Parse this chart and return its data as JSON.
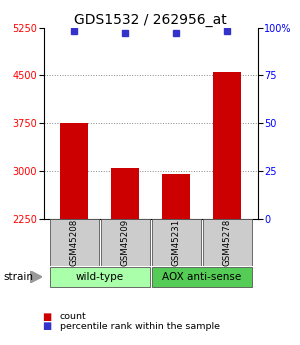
{
  "title": "GDS1532 / 262956_at",
  "samples": [
    "GSM45208",
    "GSM45209",
    "GSM45231",
    "GSM45278"
  ],
  "bar_values": [
    3750,
    3050,
    2950,
    4550
  ],
  "percentile_values": [
    98,
    97,
    97,
    98
  ],
  "ylim_left": [
    2250,
    5250
  ],
  "ylim_right": [
    0,
    100
  ],
  "yticks_left": [
    2250,
    3000,
    3750,
    4500,
    5250
  ],
  "yticks_right": [
    0,
    25,
    50,
    75,
    100
  ],
  "bar_color": "#cc0000",
  "dot_color": "#3333cc",
  "bar_width": 0.55,
  "groups": [
    {
      "label": "wild-type",
      "color": "#aaffaa"
    },
    {
      "label": "AOX anti-sense",
      "color": "#55cc55"
    }
  ],
  "sample_box_color": "#cccccc",
  "title_fontsize": 10,
  "tick_fontsize": 7,
  "background_color": "#ffffff",
  "grid_color": "#888888"
}
